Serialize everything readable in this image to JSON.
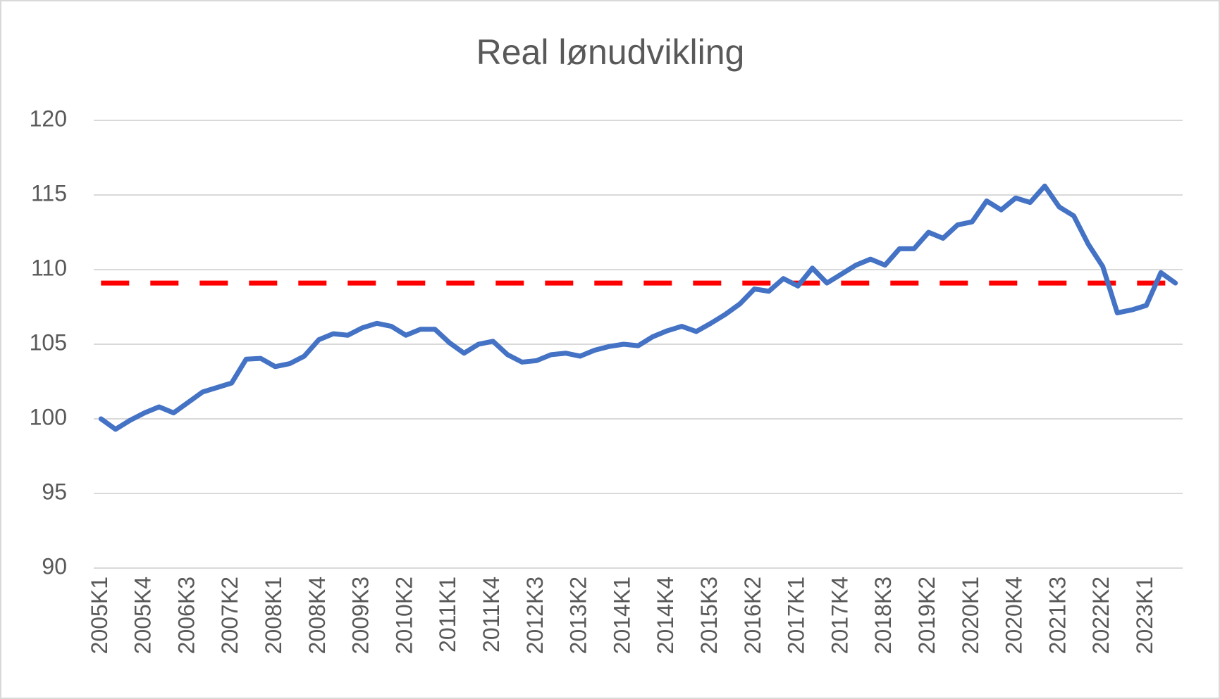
{
  "chart_data": {
    "type": "line",
    "title": "Real lønudvikling",
    "categories": [
      "2005K1",
      null,
      null,
      "2005K4",
      null,
      null,
      "2006K3",
      null,
      null,
      "2007K2",
      null,
      null,
      "2008K1",
      null,
      null,
      "2008K4",
      null,
      null,
      "2009K3",
      null,
      null,
      "2010K2",
      null,
      null,
      "2011K1",
      null,
      null,
      "2011K4",
      null,
      null,
      "2012K3",
      null,
      null,
      "2013K2",
      null,
      null,
      "2014K1",
      null,
      null,
      "2014K4",
      null,
      null,
      "2015K3",
      null,
      null,
      "2016K2",
      null,
      null,
      "2017K1",
      null,
      null,
      "2017K4",
      null,
      null,
      "2018K3",
      null,
      null,
      "2019K2",
      null,
      null,
      "2020K1",
      null,
      null,
      "2020K4",
      null,
      null,
      "2021K3",
      null,
      null,
      "2022K2",
      null,
      null,
      "2023K1",
      null,
      null
    ],
    "series": [
      {
        "color": "#4472c4",
        "values": [
          100,
          99.3,
          99.9,
          100.4,
          100.8,
          100.4,
          101.1,
          101.8,
          102.1,
          102.4,
          104.0,
          104.05,
          103.5,
          103.7,
          104.2,
          105.3,
          105.7,
          105.6,
          106.1,
          106.4,
          106.2,
          105.6,
          106.0,
          106.0,
          105.1,
          104.4,
          105.0,
          105.2,
          104.3,
          103.8,
          103.9,
          104.3,
          104.4,
          104.2,
          104.6,
          104.85,
          105.0,
          104.9,
          105.5,
          105.9,
          106.2,
          105.85,
          106.4,
          107.0,
          107.7,
          108.7,
          108.55,
          109.4,
          108.9,
          110.1,
          109.1,
          109.7,
          110.3,
          110.7,
          110.3,
          111.4,
          111.4,
          112.5,
          112.1,
          113.0,
          113.2,
          114.6,
          114.0,
          114.8,
          114.5,
          115.6,
          114.2,
          113.6,
          111.7,
          110.2,
          107.1,
          107.3,
          107.6,
          109.8,
          109.1
        ]
      }
    ],
    "reference_line": {
      "value": 109.1,
      "color": "#ff0000",
      "dashed": true
    },
    "ylim": [
      90,
      120
    ],
    "yticks": [
      90,
      95,
      100,
      105,
      110,
      115,
      120
    ],
    "grid": true
  }
}
